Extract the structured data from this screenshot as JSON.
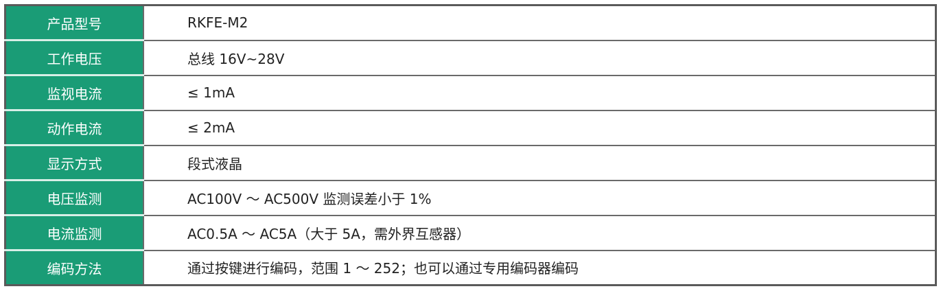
{
  "colors": {
    "label_bg": "#1a9c76",
    "label_text": "#ffffff",
    "border": "#5a5a5a"
  },
  "rows": [
    {
      "label": "产品型号",
      "value": "RKFE-M2"
    },
    {
      "label": "工作电压",
      "value": "总线 16V~28V"
    },
    {
      "label": "监视电流",
      "value": "≤ 1mA"
    },
    {
      "label": "动作电流",
      "value": "≤ 2mA"
    },
    {
      "label": "显示方式",
      "value": "段式液晶"
    },
    {
      "label": "电压监测",
      "value": "AC100V ～ AC500V 监测误差小于 1%"
    },
    {
      "label": "电流监测",
      "value": "AC0.5A ～ AC5A（大于 5A，需外界互感器）"
    },
    {
      "label": "编码方法",
      "value": "通过按键进行编码，范围 1 ～ 252；也可以通过专用编码器编码"
    }
  ]
}
